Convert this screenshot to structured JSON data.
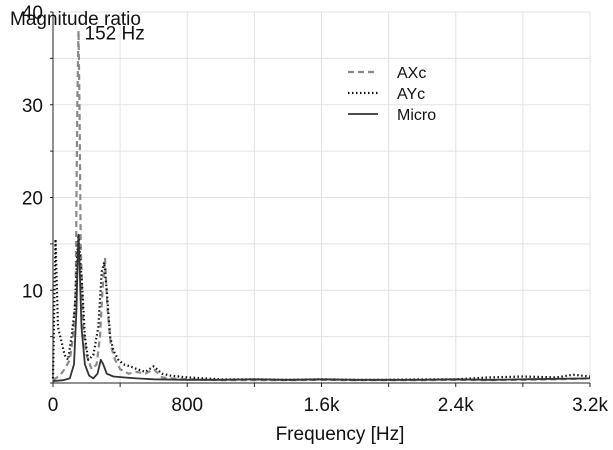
{
  "chart_data": {
    "type": "line",
    "ylabel": "Magnitude ratio",
    "xlabel": "Frequency [Hz]",
    "xlim": [
      0,
      3200
    ],
    "ylim": [
      0,
      40
    ],
    "x_ticks": [
      {
        "value": 0,
        "label": "0"
      },
      {
        "value": 800,
        "label": "800"
      },
      {
        "value": 1600,
        "label": "1.6k"
      },
      {
        "value": 2400,
        "label": "2.4k"
      },
      {
        "value": 3200,
        "label": "3.2k"
      }
    ],
    "y_ticks": [
      {
        "value": 10,
        "label": "10"
      },
      {
        "value": 20,
        "label": "20"
      },
      {
        "value": 30,
        "label": "30"
      },
      {
        "value": 40,
        "label": "40"
      }
    ],
    "grid": true,
    "legend_position": "top-right",
    "annotation": {
      "text": "152 Hz",
      "x": 152,
      "y": 38
    },
    "series": [
      {
        "name": "AXc",
        "style": "dashed",
        "color": "#8a8a8a",
        "points": [
          [
            0,
            0.3
          ],
          [
            40,
            0.8
          ],
          [
            70,
            1.5
          ],
          [
            100,
            2.5
          ],
          [
            120,
            5
          ],
          [
            135,
            10
          ],
          [
            145,
            30
          ],
          [
            152,
            38
          ],
          [
            158,
            30
          ],
          [
            165,
            15
          ],
          [
            180,
            6
          ],
          [
            200,
            3
          ],
          [
            230,
            1.5
          ],
          [
            260,
            2
          ],
          [
            280,
            5
          ],
          [
            295,
            10
          ],
          [
            310,
            13.5
          ],
          [
            325,
            8
          ],
          [
            345,
            4
          ],
          [
            370,
            2.5
          ],
          [
            400,
            1.5
          ],
          [
            450,
            1
          ],
          [
            500,
            1.2
          ],
          [
            550,
            1
          ],
          [
            600,
            1.5
          ],
          [
            650,
            0.6
          ],
          [
            700,
            0.5
          ],
          [
            800,
            0.4
          ],
          [
            1000,
            0.3
          ],
          [
            1200,
            0.3
          ],
          [
            1400,
            0.3
          ],
          [
            1600,
            0.35
          ],
          [
            1800,
            0.3
          ],
          [
            2000,
            0.3
          ],
          [
            2200,
            0.3
          ],
          [
            2400,
            0.35
          ],
          [
            2600,
            0.3
          ],
          [
            2800,
            0.35
          ],
          [
            3000,
            0.4
          ],
          [
            3200,
            0.5
          ]
        ]
      },
      {
        "name": "AYc",
        "style": "dotted",
        "color": "#111111",
        "points": [
          [
            0,
            0.5
          ],
          [
            15,
            15.5
          ],
          [
            30,
            6
          ],
          [
            50,
            4.5
          ],
          [
            70,
            3
          ],
          [
            90,
            2.5
          ],
          [
            110,
            5
          ],
          [
            130,
            8
          ],
          [
            145,
            14
          ],
          [
            152,
            16
          ],
          [
            160,
            14
          ],
          [
            175,
            10
          ],
          [
            190,
            5
          ],
          [
            210,
            2.5
          ],
          [
            240,
            3
          ],
          [
            270,
            6
          ],
          [
            290,
            12
          ],
          [
            305,
            13
          ],
          [
            320,
            10
          ],
          [
            340,
            5
          ],
          [
            360,
            3.5
          ],
          [
            390,
            2.5
          ],
          [
            420,
            2
          ],
          [
            460,
            1.8
          ],
          [
            500,
            1.5
          ],
          [
            550,
            1.2
          ],
          [
            600,
            1.8
          ],
          [
            650,
            1
          ],
          [
            700,
            0.8
          ],
          [
            800,
            0.6
          ],
          [
            1000,
            0.4
          ],
          [
            1200,
            0.4
          ],
          [
            1400,
            0.35
          ],
          [
            1600,
            0.4
          ],
          [
            1800,
            0.35
          ],
          [
            2000,
            0.35
          ],
          [
            2200,
            0.4
          ],
          [
            2400,
            0.4
          ],
          [
            2600,
            0.6
          ],
          [
            2800,
            0.7
          ],
          [
            3000,
            0.6
          ],
          [
            3100,
            0.9
          ],
          [
            3200,
            0.7
          ]
        ]
      },
      {
        "name": "Micro",
        "style": "solid",
        "color": "#333333",
        "points": [
          [
            0,
            0.2
          ],
          [
            60,
            0.3
          ],
          [
            100,
            0.5
          ],
          [
            125,
            2
          ],
          [
            140,
            8
          ],
          [
            148,
            14
          ],
          [
            152,
            16
          ],
          [
            158,
            13
          ],
          [
            170,
            6
          ],
          [
            190,
            2
          ],
          [
            215,
            0.8
          ],
          [
            240,
            0.5
          ],
          [
            265,
            1
          ],
          [
            285,
            2.5
          ],
          [
            300,
            2
          ],
          [
            320,
            1
          ],
          [
            360,
            0.7
          ],
          [
            420,
            0.6
          ],
          [
            500,
            0.5
          ],
          [
            600,
            0.4
          ],
          [
            800,
            0.35
          ],
          [
            1000,
            0.35
          ],
          [
            1200,
            0.4
          ],
          [
            1400,
            0.35
          ],
          [
            1600,
            0.4
          ],
          [
            1800,
            0.35
          ],
          [
            2000,
            0.35
          ],
          [
            2200,
            0.35
          ],
          [
            2400,
            0.4
          ],
          [
            2600,
            0.35
          ],
          [
            2800,
            0.4
          ],
          [
            3000,
            0.45
          ],
          [
            3200,
            0.5
          ]
        ]
      }
    ]
  }
}
